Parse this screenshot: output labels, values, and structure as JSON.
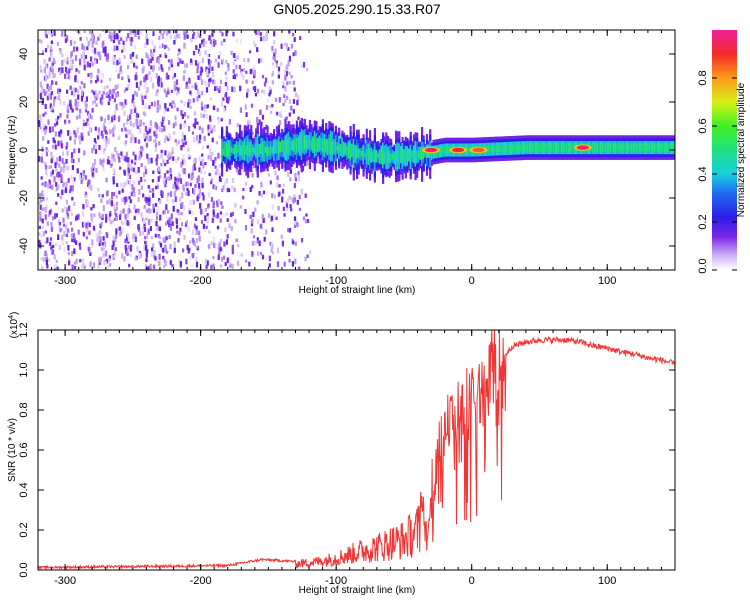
{
  "title": "GN05.2025.290.15.33.R07",
  "chart_data": [
    {
      "type": "heatmap",
      "name": "spectrogram",
      "xlabel": "Height of straight line (km)",
      "ylabel": "Frequency (Hz)",
      "xlim": [
        -320,
        150
      ],
      "ylim": [
        -50,
        50
      ],
      "xticks": [
        -300,
        -200,
        -100,
        0,
        100
      ],
      "xtick_labels": [
        "-300",
        "-200",
        "-100",
        "0",
        "100"
      ],
      "yticks": [
        -40,
        -20,
        0,
        20,
        40
      ],
      "ytick_labels": [
        "-40",
        "-20",
        "0",
        "20",
        "40"
      ],
      "colorbar": {
        "label": "Normalized spectral amplitude",
        "range": [
          0,
          1
        ],
        "ticks": [
          0.0,
          0.2,
          0.4,
          0.6,
          0.8
        ],
        "tick_labels": [
          "0.0",
          "0.2",
          "0.4",
          "0.6",
          "0.8"
        ]
      },
      "features": {
        "noise_region_x": [
          -320,
          -130
        ],
        "noise_fade_x": [
          -130,
          -120
        ],
        "band_center_hz": [
          [
            -180,
            0
          ],
          [
            -150,
            0
          ],
          [
            -120,
            3
          ],
          [
            -100,
            1
          ],
          [
            -80,
            -2
          ],
          [
            -60,
            -3
          ],
          [
            -40,
            -2
          ],
          [
            -20,
            0
          ],
          [
            0,
            0
          ],
          [
            40,
            1
          ],
          [
            80,
            1
          ],
          [
            150,
            1
          ]
        ],
        "hot_spots": [
          {
            "x": -30,
            "y": 0,
            "amp": 1.0
          },
          {
            "x": -10,
            "y": 0,
            "amp": 0.95
          },
          {
            "x": 5,
            "y": 0,
            "amp": 0.9
          },
          {
            "x": 82,
            "y": 1,
            "amp": 1.0
          }
        ]
      }
    },
    {
      "type": "line",
      "name": "snr",
      "xlabel": "Height of straight line (km)",
      "ylabel": "SNR (10 * v/v)",
      "y_scale_label": "(x10",
      "y_scale_exp": "4",
      "y_scale_close": ")",
      "xlim": [
        -320,
        150
      ],
      "ylim": [
        0,
        1.2
      ],
      "xticks": [
        -300,
        -200,
        -100,
        0,
        100
      ],
      "xtick_labels": [
        "-300",
        "-200",
        "-100",
        "0",
        "100"
      ],
      "yticks": [
        0.0,
        0.2,
        0.4,
        0.6,
        0.8,
        1.0,
        1.2
      ],
      "ytick_labels": [
        "0.0",
        "0.2",
        "0.4",
        "0.6",
        "0.8",
        "1.0",
        "1.2"
      ],
      "series": [
        {
          "name": "SNR",
          "color": "#f03535",
          "x": [
            -320,
            -250,
            -180,
            -155,
            -130,
            -110,
            -95,
            -80,
            -70,
            -60,
            -50,
            -42,
            -35,
            -30,
            -25,
            -20,
            -15,
            -10,
            -5,
            0,
            5,
            10,
            15,
            20,
            25,
            30,
            40,
            50,
            60,
            70,
            80,
            90,
            100,
            110,
            120,
            130,
            140,
            150
          ],
          "y": [
            0.01,
            0.015,
            0.02,
            0.05,
            0.04,
            0.06,
            0.09,
            0.13,
            0.15,
            0.18,
            0.2,
            0.25,
            0.3,
            0.35,
            0.6,
            0.75,
            0.78,
            0.8,
            0.82,
            0.85,
            0.88,
            0.93,
            0.98,
            1.03,
            1.08,
            1.12,
            1.14,
            1.15,
            1.15,
            1.15,
            1.14,
            1.12,
            1.11,
            1.09,
            1.08,
            1.06,
            1.05,
            1.03
          ]
        }
      ]
    }
  ]
}
